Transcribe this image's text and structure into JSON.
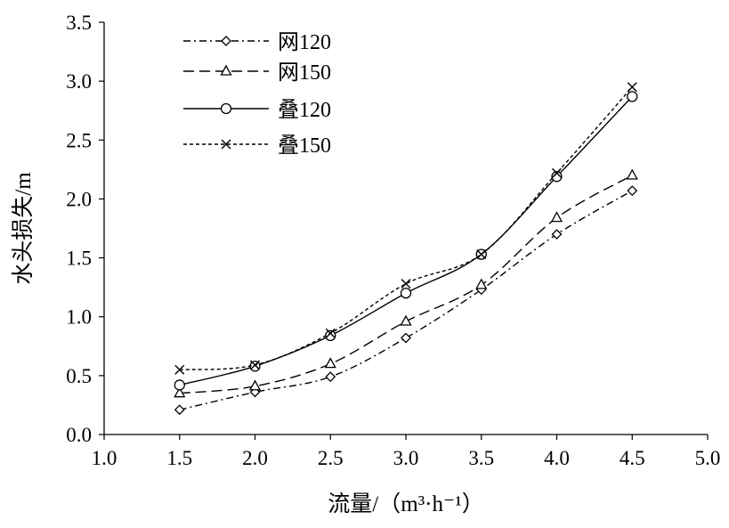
{
  "chart_data": {
    "type": "line",
    "xlabel": "流量/（m³·h⁻¹）",
    "ylabel": "水头损失/m",
    "xlim": [
      1.0,
      5.0
    ],
    "ylim": [
      0.0,
      3.5
    ],
    "xticks": [
      "1.0",
      "1.5",
      "2.0",
      "2.5",
      "3.0",
      "3.5",
      "4.0",
      "4.5",
      "5.0"
    ],
    "yticks": [
      "0.0",
      "0.5",
      "1.0",
      "1.5",
      "2.0",
      "2.5",
      "3.0",
      "3.5"
    ],
    "grid": false,
    "legend_position": "top-left",
    "x": [
      1.5,
      2.0,
      2.5,
      3.0,
      3.5,
      4.0,
      4.5
    ],
    "series": [
      {
        "name": "网120",
        "marker": "diamond",
        "line": "dash-dot",
        "values": [
          0.21,
          0.36,
          0.49,
          0.82,
          1.23,
          1.7,
          2.07
        ]
      },
      {
        "name": "网150",
        "marker": "triangle",
        "line": "long-dash",
        "values": [
          0.35,
          0.41,
          0.6,
          0.96,
          1.27,
          1.84,
          2.2
        ]
      },
      {
        "name": "叠120",
        "marker": "circle",
        "line": "solid",
        "values": [
          0.42,
          0.58,
          0.84,
          1.2,
          1.53,
          2.19,
          2.87
        ]
      },
      {
        "name": "叠150",
        "marker": "cross",
        "line": "short-dash",
        "values": [
          0.55,
          0.59,
          0.86,
          1.28,
          1.53,
          2.22,
          2.95
        ]
      }
    ],
    "colors": {
      "line": "#000000",
      "background": "#ffffff"
    }
  }
}
